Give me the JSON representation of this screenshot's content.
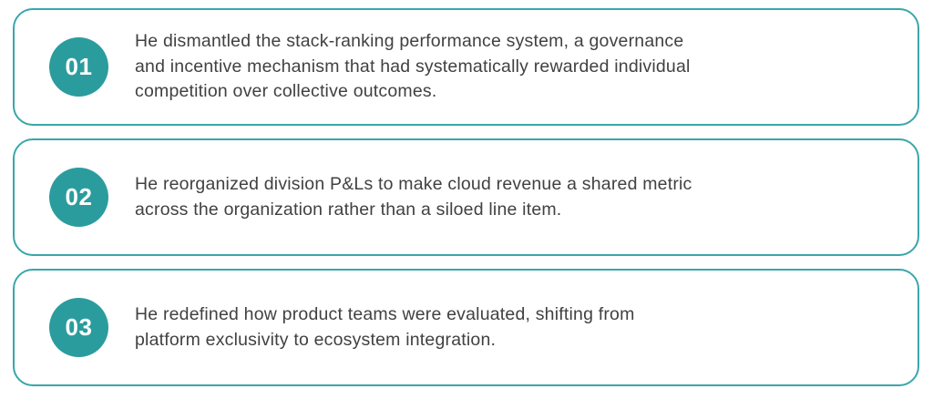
{
  "page": {
    "background": "#ffffff"
  },
  "colors": {
    "badge_fill": "#2b9c9e",
    "card_border": "#3aa6aa",
    "body_text": "#414141",
    "badge_text": "#ffffff"
  },
  "cards": [
    {
      "number": "01",
      "text": "He dismantled the stack-ranking performance system, a governance\nand incentive mechanism that had systematically rewarded individual\ncompetition over collective outcomes."
    },
    {
      "number": "02",
      "text": "He reorganized division P&Ls to make cloud revenue a shared metric\nacross the organization rather than a siloed line item."
    },
    {
      "number": "03",
      "text": "He redefined how product teams were evaluated, shifting from\nplatform exclusivity to ecosystem integration."
    }
  ]
}
